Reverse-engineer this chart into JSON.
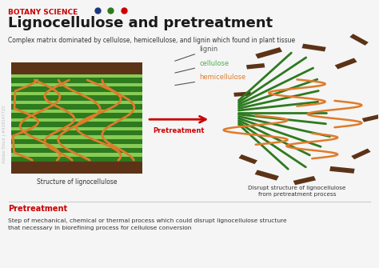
{
  "title": "Lignocellulose and pretreatment",
  "header": "BOTANY SCIENCE",
  "subtitle": "Complex matrix dominated by cellulose, hemicellulose, and lignin which found in plant tissue",
  "label_lignin": "lignin",
  "label_cellulose": "cellulose",
  "label_hemicellulose": "hemicellulose",
  "label_pretreatment": "Pretreatment",
  "caption_left": "Structure of lignocellulose",
  "caption_right": "Disrupt structure of lignocellulose\nfrom pretreatment process",
  "footer_title": "Pretreatment",
  "footer_text": "Step of mechanical, chemical or thermal process which could disrupt lignocellulose structure\nthat necessary in biorefining process for cellulose conversion",
  "color_bg": "#f5f5f5",
  "color_brown": "#5C3317",
  "color_green_dark": "#2d7a1f",
  "color_green_light": "#88cc55",
  "color_orange": "#e07b2a",
  "color_red": "#cc0000",
  "color_header_red": "#cc0000",
  "color_dot_blue": "#1a3a7a",
  "color_dot_green": "#2d7a1f",
  "color_dot_red": "#cc0000",
  "color_black": "#1a1a1a",
  "color_label_green": "#4caf50",
  "color_label_orange": "#e07b2a",
  "color_text_dark": "#333333",
  "color_text_gray": "#555555"
}
